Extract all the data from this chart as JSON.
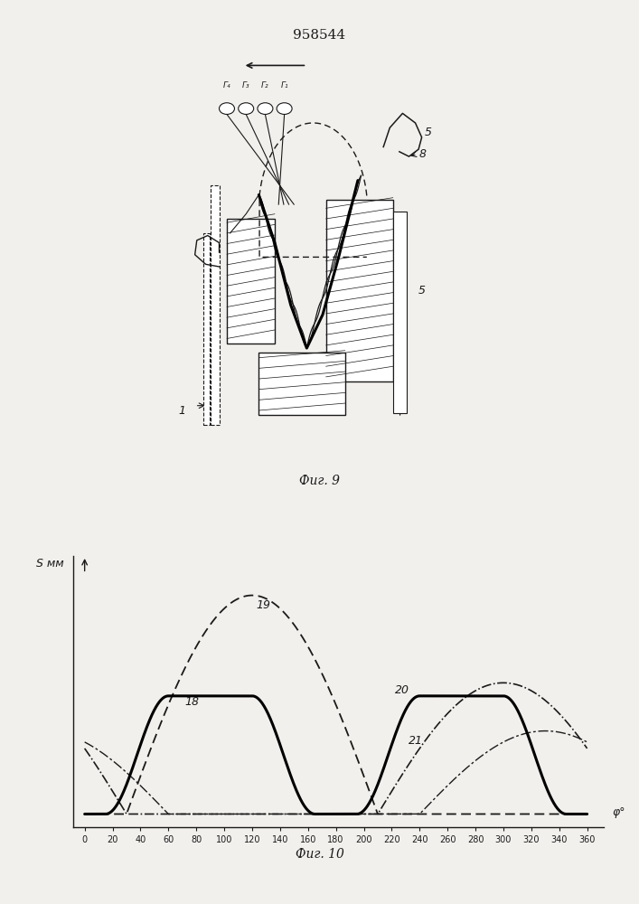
{
  "title": "958544",
  "fig9_caption": "Фиг. 9",
  "fig10_caption": "Фиг. 10",
  "graph_ylabel": "S мм",
  "graph_xlabel": "φ°",
  "x_ticks": [
    0,
    20,
    40,
    60,
    80,
    100,
    120,
    140,
    160,
    180,
    200,
    220,
    240,
    260,
    280,
    300,
    320,
    340,
    360
  ],
  "background_color": "#f2f0ed",
  "line_color": "#1a1a1a"
}
